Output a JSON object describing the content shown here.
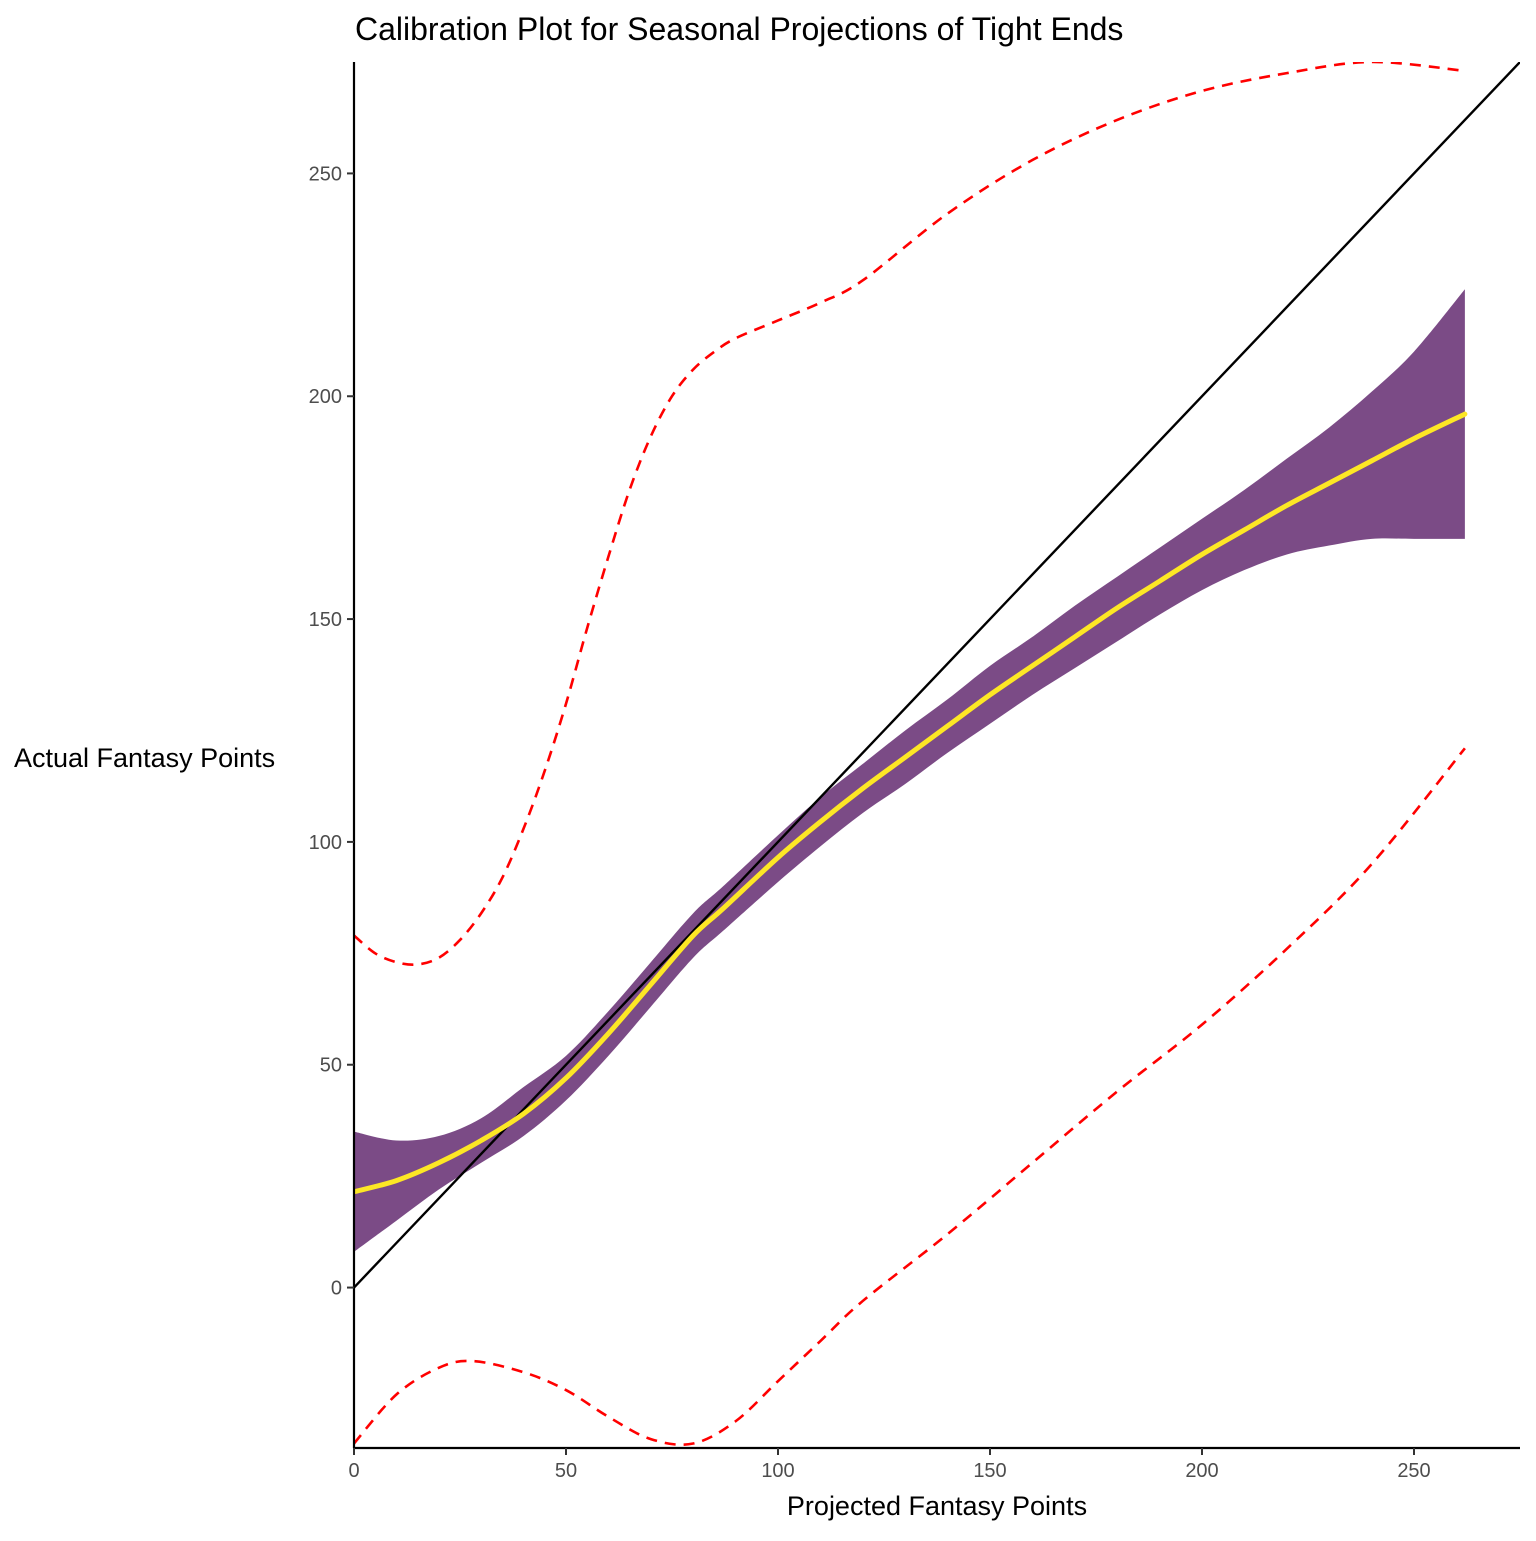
{
  "chart_data": {
    "type": "line",
    "title": "Calibration Plot for Seasonal Projections of Tight Ends",
    "xlabel": "Projected Fantasy Points",
    "ylabel": "Actual Fantasy Points",
    "xlim": [
      0,
      275
    ],
    "ylim": [
      -36,
      275
    ],
    "x_ticks": [
      0,
      50,
      100,
      150,
      200,
      250
    ],
    "y_ticks": [
      0,
      50,
      100,
      150,
      200,
      250
    ],
    "grid": false,
    "legend": "none",
    "colors": {
      "smooth_line": "#FDE725",
      "confidence_band": "#7B4B86",
      "prediction_interval": "#FF0000",
      "identity_line": "#000000",
      "axis": "#000000",
      "tick_label": "#4D4D4D"
    },
    "reference_line": {
      "description": "y = x",
      "x": [
        0,
        275
      ],
      "y": [
        0,
        275
      ]
    },
    "series": [
      {
        "type": "line",
        "x": [
          0,
          10,
          20,
          30,
          40,
          50,
          60,
          70,
          80,
          87,
          100,
          110,
          120,
          130,
          140,
          150,
          160,
          170,
          180,
          190,
          200,
          210,
          220,
          230,
          240,
          250,
          262
        ],
        "y": [
          21.5,
          24,
          28,
          33,
          39,
          47,
          57,
          68,
          79,
          85,
          96.5,
          104.5,
          112,
          119,
          126,
          133,
          139.5,
          146,
          152.5,
          158.5,
          164.5,
          170,
          175.5,
          180.5,
          185.5,
          190.5,
          196
        ]
      },
      {
        "type": "band",
        "x": [
          0,
          10,
          20,
          30,
          40,
          50,
          60,
          70,
          80,
          87,
          100,
          110,
          120,
          130,
          140,
          150,
          160,
          170,
          180,
          190,
          200,
          210,
          220,
          230,
          240,
          250,
          262
        ],
        "lower": [
          8,
          15,
          22,
          28,
          34,
          42,
          52,
          63,
          74,
          80,
          91,
          99,
          106.5,
          113,
          120,
          126.5,
          133,
          139,
          145,
          151,
          156.5,
          161,
          164.5,
          166.5,
          168,
          168,
          168
        ],
        "upper": [
          35,
          33,
          34,
          38,
          45,
          52,
          62,
          73,
          84,
          90,
          101.5,
          110,
          117.5,
          125,
          132,
          139.5,
          146,
          153,
          159.5,
          166,
          172.5,
          179,
          186,
          193,
          201,
          210,
          224
        ]
      },
      {
        "type": "dashed",
        "x": [
          0,
          5,
          10,
          15,
          20,
          25,
          30,
          35,
          40,
          45,
          50,
          55,
          60,
          65,
          70,
          75,
          80,
          85,
          90,
          100,
          110,
          120,
          140,
          160,
          180,
          200,
          220,
          240,
          262
        ],
        "y": [
          79,
          75,
          73,
          72.5,
          74,
          78,
          84,
          92,
          103,
          116,
          131,
          148,
          164,
          179,
          191,
          200,
          206,
          210,
          213,
          217,
          221,
          226,
          241,
          253,
          262,
          268.5,
          272.5,
          275,
          273
        ]
      },
      {
        "type": "dashed",
        "x": [
          0,
          10,
          20,
          28,
          40,
          50,
          60,
          70,
          80,
          90,
          100,
          110,
          120,
          140,
          160,
          180,
          200,
          220,
          240,
          262
        ],
        "y": [
          -35,
          -24,
          -18,
          -16.5,
          -19,
          -23,
          -29,
          -34,
          -35,
          -30,
          -21,
          -12,
          -3,
          12,
          28,
          44,
          59,
          76,
          95,
          121
        ]
      }
    ]
  }
}
